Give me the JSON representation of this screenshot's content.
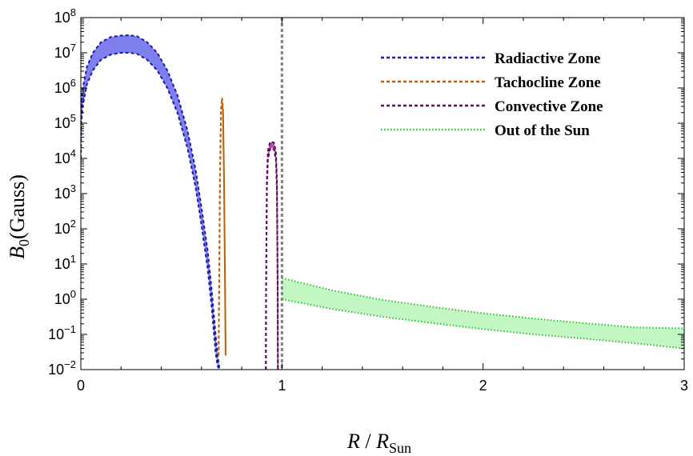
{
  "chart_data": {
    "type": "area",
    "title": "",
    "xlabel": {
      "main": "R",
      "sep": " / ",
      "sym": "R",
      "sub": "Sun"
    },
    "ylabel": {
      "sym": "B",
      "sub": "0",
      "rest": "(Gauss)"
    },
    "xlim": [
      0,
      3
    ],
    "ylim_log10": [
      -2,
      8
    ],
    "yscale": "log",
    "x_ticks": [
      0,
      1,
      2,
      3
    ],
    "x_tick_labels": [
      "0",
      "1",
      "2",
      "3"
    ],
    "y_ticks_log10": [
      -2,
      -1,
      0,
      1,
      2,
      3,
      4,
      5,
      6,
      7,
      8
    ],
    "y_tick_labels": [
      {
        "base": "10",
        "exp": "−2"
      },
      {
        "base": "10",
        "exp": "−1"
      },
      {
        "base": "10",
        "exp": "0"
      },
      {
        "base": "10",
        "exp": "1"
      },
      {
        "base": "10",
        "exp": "2"
      },
      {
        "base": "10",
        "exp": "3"
      },
      {
        "base": "10",
        "exp": "4"
      },
      {
        "base": "10",
        "exp": "5"
      },
      {
        "base": "10",
        "exp": "6"
      },
      {
        "base": "10",
        "exp": "7"
      },
      {
        "base": "10",
        "exp": "8"
      }
    ],
    "vertical_line": {
      "x": 1.0,
      "color": "#808080",
      "style": "dotted"
    },
    "legend_position": "top-right",
    "series": [
      {
        "name": "Radiactive Zone",
        "line_color": "#1a1aa8",
        "fill_color": "#7070ec",
        "line_style": "dashed",
        "x": [
          0,
          0.002,
          0.01,
          0.03,
          0.06,
          0.1,
          0.15,
          0.2,
          0.24,
          0.28,
          0.33,
          0.38,
          0.43,
          0.48,
          0.53,
          0.57,
          0.6,
          0.63,
          0.65,
          0.67,
          0.68,
          0.69
        ],
        "upper_log10": [
          4.5,
          5.6,
          6.0,
          6.6,
          7.0,
          7.3,
          7.45,
          7.49,
          7.5,
          7.47,
          7.3,
          7.0,
          6.5,
          5.8,
          4.8,
          3.7,
          2.6,
          1.4,
          0.3,
          -1.0,
          -1.6,
          -2.0
        ],
        "lower_log10": [
          4.0,
          5.0,
          5.5,
          6.1,
          6.5,
          6.8,
          6.95,
          7.0,
          7.0,
          6.97,
          6.8,
          6.5,
          6.0,
          5.3,
          4.3,
          3.2,
          2.1,
          0.9,
          -0.2,
          -1.5,
          -1.9,
          -2.0
        ]
      },
      {
        "name": "Tachocline Zone",
        "line_color": "#b8600c",
        "fill_color": "#d98a3a",
        "line_style": "dashed",
        "x": [
          0.685,
          0.688,
          0.692,
          0.697,
          0.702,
          0.707,
          0.712,
          0.717,
          0.72
        ],
        "upper_log10": [
          -1.6,
          0.5,
          3.5,
          5.4,
          5.72,
          5.4,
          3.5,
          0.5,
          -1.6
        ],
        "lower_log10": [
          -1.6,
          0.4,
          3.4,
          5.3,
          5.6,
          5.3,
          3.4,
          0.4,
          -1.6
        ]
      },
      {
        "name": "Convective Zone",
        "line_color": "#5e0a5e",
        "fill_color": "#a040a0",
        "line_style": "dashed",
        "x": [
          0.92,
          0.921,
          0.925,
          0.93,
          0.94,
          0.95,
          0.96,
          0.97,
          0.975,
          0.979,
          0.98
        ],
        "upper_log10": [
          -2.0,
          0.2,
          3.4,
          4.2,
          4.45,
          4.47,
          4.45,
          4.2,
          3.4,
          0.2,
          -2.0
        ],
        "lower_log10": [
          -2.0,
          0.0,
          3.1,
          3.95,
          4.25,
          4.3,
          4.25,
          3.95,
          3.1,
          0.0,
          -2.0
        ]
      },
      {
        "name": "Out of the Sun",
        "line_color": "#33bb33",
        "fill_color": "#bbf5bb",
        "line_style": "dotted",
        "x": [
          1.0,
          1.25,
          1.5,
          1.75,
          2.0,
          2.25,
          2.5,
          2.75,
          3.0
        ],
        "upper_log10": [
          0.6,
          0.25,
          -0.02,
          -0.22,
          -0.4,
          -0.55,
          -0.68,
          -0.8,
          -0.83
        ],
        "lower_log10": [
          0.0,
          -0.28,
          -0.5,
          -0.68,
          -0.85,
          -1.0,
          -1.12,
          -1.25,
          -1.4
        ]
      }
    ]
  }
}
